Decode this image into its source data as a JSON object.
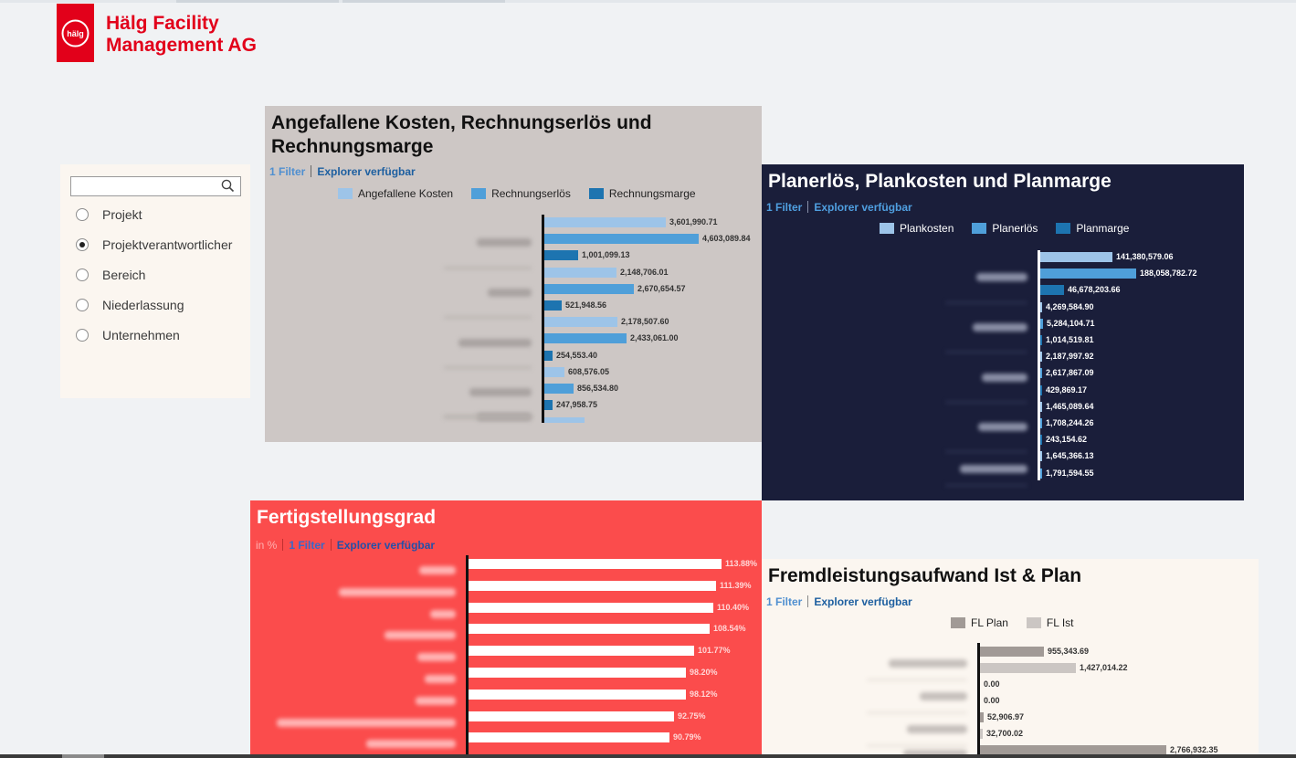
{
  "brand": {
    "company_line1": "Hälg Facility",
    "company_line2": "Management AG",
    "logo_lettering": "hälg",
    "brand_color": "#e2001a"
  },
  "filter_panel": {
    "search_value": "",
    "search_icon": "search-icon",
    "options": [
      {
        "label": "Projekt",
        "selected": false
      },
      {
        "label": "Projektverantwortlicher",
        "selected": true
      },
      {
        "label": "Bereich",
        "selected": false
      },
      {
        "label": "Niederlassung",
        "selected": false
      },
      {
        "label": "Unternehmen",
        "selected": false
      }
    ]
  },
  "tiles": {
    "kosten": {
      "title": "Angefallene Kosten, Rechnungserlös und Rechnungsmarge",
      "filter_link": "1 Filter",
      "explorer_link": "Explorer verfügbar",
      "background": "#cdc7c5"
    },
    "plan": {
      "title": "Planerlös, Plankosten und Planmarge",
      "filter_link": "1 Filter",
      "explorer_link": "Explorer verfügbar",
      "background": "#1a1e3a"
    },
    "fertig": {
      "title": "Fertigstellungsgrad",
      "unit": "in %",
      "filter_link": "1 Filter",
      "explorer_link": "Explorer verfügbar",
      "background": "#fb4c4c"
    },
    "fremd": {
      "title": "Fremdleistungsaufwand Ist & Plan",
      "filter_link": "1 Filter",
      "explorer_link": "Explorer verfügbar",
      "background": "#fbf6f0"
    }
  },
  "chart_data": [
    {
      "id": "kosten",
      "type": "bar",
      "orientation": "horizontal",
      "grouped": true,
      "categories": [
        "",
        "",
        "",
        "",
        ""
      ],
      "category_labels_blurred": true,
      "xlim": [
        0,
        5000000
      ],
      "series": [
        {
          "name": "Angefallene Kosten",
          "color": "#9dc4e8",
          "values": [
            3601990.71,
            2148706.01,
            2178507.6,
            608576.05,
            null
          ]
        },
        {
          "name": "Rechnungserlös",
          "color": "#4f9fd9",
          "values": [
            4603089.84,
            2670654.57,
            2433061.0,
            856534.8,
            null
          ]
        },
        {
          "name": "Rechnungsmarge",
          "color": "#1d74b0",
          "values": [
            1001099.13,
            521948.56,
            254553.4,
            247958.75,
            null
          ]
        }
      ],
      "data_labels": [
        "3,601,990.71",
        "4,603,089.84",
        "1,001,099.13",
        "2,148,706.01",
        "2,670,654.57",
        "521,948.56",
        "2,178,507.60",
        "2,433,061.00",
        "254,553.40",
        "608,576.05",
        "856,534.80",
        "247,958.75"
      ],
      "grid": false,
      "legend_position": "top"
    },
    {
      "id": "plan",
      "type": "bar",
      "orientation": "horizontal",
      "grouped": true,
      "categories": [
        "",
        "",
        "",
        "",
        ""
      ],
      "category_labels_blurred": true,
      "xlim": [
        0,
        200000000
      ],
      "series": [
        {
          "name": "Plankosten",
          "color": "#9dc4e8",
          "values": [
            141380579.06,
            4269584.9,
            2187997.92,
            1465089.64,
            1645366.13
          ]
        },
        {
          "name": "Planerlös",
          "color": "#4f9fd9",
          "values": [
            188058782.72,
            5284104.71,
            2617867.09,
            1708244.26,
            1791594.55
          ]
        },
        {
          "name": "Planmarge",
          "color": "#1d74b0",
          "values": [
            46678203.66,
            1014519.81,
            429869.17,
            243154.62,
            null
          ]
        }
      ],
      "data_labels": [
        "141,380,579.06",
        "188,058,782.72",
        "46,678,203.66",
        "4,269,584.90",
        "5,284,104.71",
        "1,014,519.81",
        "2,187,997.92",
        "2,617,867.09",
        "429,869.17",
        "1,465,089.64",
        "1,708,244.26",
        "243,154.62",
        "1,645,366.13",
        "1,791,594.55"
      ],
      "grid": false,
      "legend_position": "top"
    },
    {
      "id": "fertig",
      "type": "bar",
      "orientation": "horizontal",
      "categories": [
        "",
        "",
        "",
        "",
        "",
        "",
        "",
        "",
        ""
      ],
      "category_labels_blurred": true,
      "unit": "%",
      "xlim": [
        0,
        140
      ],
      "series": [
        {
          "name": "",
          "color": "#ffffff",
          "values": [
            113.88,
            111.39,
            110.4,
            108.54,
            101.77,
            98.2,
            98.12,
            92.75,
            90.79
          ]
        }
      ],
      "data_labels": [
        "113.88%",
        "111.39%",
        "110.40%",
        "108.54%",
        "101.77%",
        "98.20%",
        "98.12%",
        "92.75%",
        "90.79%"
      ],
      "grid": false
    },
    {
      "id": "fremd",
      "type": "bar",
      "orientation": "horizontal",
      "grouped": true,
      "categories": [
        "",
        "",
        "",
        ""
      ],
      "category_labels_blurred": true,
      "xlim": [
        0,
        3000000
      ],
      "series": [
        {
          "name": "FL Plan",
          "color": "#a19a96",
          "values": [
            955343.69,
            0.0,
            52906.97,
            2766932.35
          ]
        },
        {
          "name": "FL Ist",
          "color": "#cbc6c3",
          "values": [
            1427014.22,
            0.0,
            32700.02,
            null
          ]
        }
      ],
      "data_labels": [
        "955,343.69",
        "1,427,014.22",
        "0.00",
        "0.00",
        "52,906.97",
        "32,700.02",
        "2,766,932.35"
      ],
      "grid": false,
      "legend_position": "top"
    }
  ]
}
